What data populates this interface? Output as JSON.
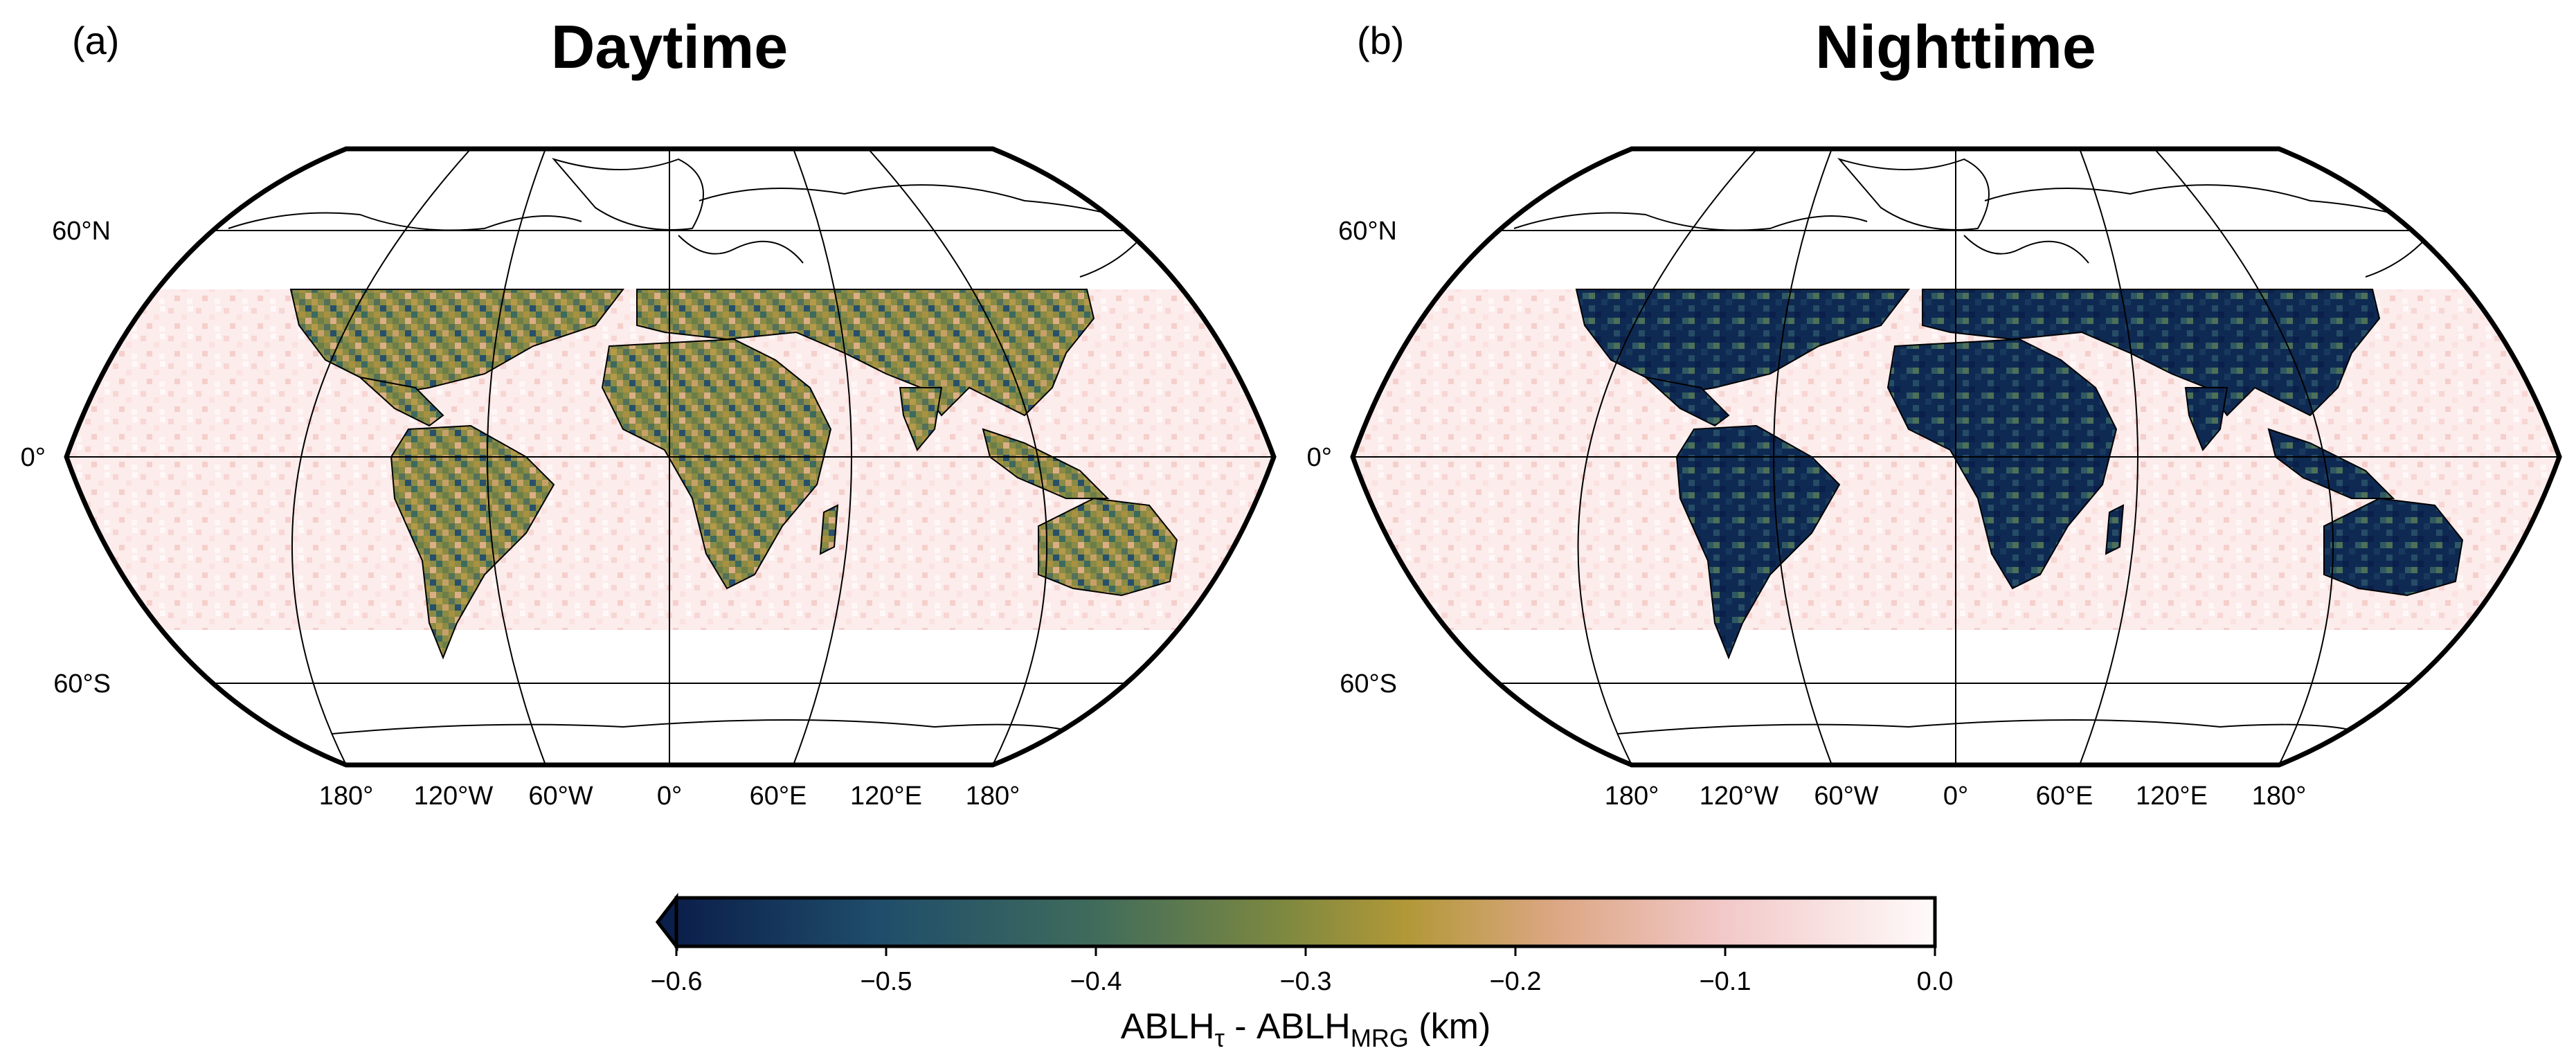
{
  "panels": [
    {
      "letter": "(a)",
      "title": "Daytime",
      "lat_labels": [
        "60°N",
        "0°",
        "60°S"
      ],
      "lon_labels": [
        "180°",
        "120°W",
        "60°W",
        "0°",
        "60°E",
        "120°E",
        "180°"
      ]
    },
    {
      "letter": "(b)",
      "title": "Nighttime",
      "lat_labels": [
        "60°N",
        "0°",
        "60°S"
      ],
      "lon_labels": [
        "180°",
        "120°W",
        "60°W",
        "0°",
        "60°E",
        "120°E",
        "180°"
      ]
    }
  ],
  "colorbar": {
    "ticks": [
      "−0.6",
      "−0.5",
      "−0.4",
      "−0.3",
      "−0.2",
      "−0.1",
      "0.0"
    ],
    "range": [
      -0.6,
      0.0
    ],
    "extend": "min",
    "label_main": "ABLH",
    "label_sub1": "τ",
    "label_mid": " - ABLH",
    "label_sub2": "MRG",
    "label_unit": " (km)",
    "colors": [
      "#0b1f4b",
      "#1f4d6a",
      "#3f6b5c",
      "#7c8840",
      "#b29838",
      "#dca784",
      "#f2c8c8",
      "#fffafa"
    ]
  }
}
